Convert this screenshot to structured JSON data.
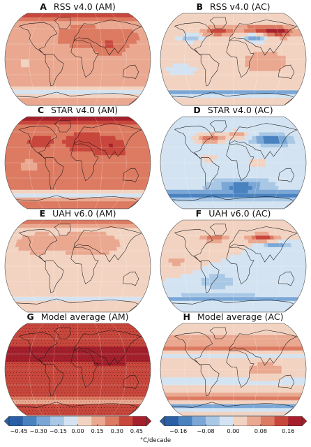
{
  "panels": [
    {
      "letter": "A",
      "title": "RSS v4.0 (AM)",
      "scale": "am",
      "pattern": "warm",
      "hatch": false
    },
    {
      "letter": "B",
      "title": "RSS v4.0 (AC)",
      "scale": "ac",
      "pattern": "ac_strong",
      "hatch": false
    },
    {
      "letter": "C",
      "title": "STAR v4.0 (AM)",
      "scale": "am",
      "pattern": "warm_strong",
      "hatch": false
    },
    {
      "letter": "D",
      "title": "STAR v4.0 (AC)",
      "scale": "ac",
      "pattern": "ac_cool",
      "hatch": false
    },
    {
      "letter": "E",
      "title": "UAH v6.0 (AM)",
      "scale": "am",
      "pattern": "warm_weak",
      "hatch": false
    },
    {
      "letter": "F",
      "title": "UAH v6.0 (AC)",
      "scale": "ac",
      "pattern": "ac_mid",
      "hatch": false
    },
    {
      "letter": "G",
      "title": "Model average (AM)",
      "scale": "am",
      "pattern": "model",
      "hatch": true
    },
    {
      "letter": "H",
      "title": "Model average (AC)",
      "scale": "ac",
      "pattern": "ac_model",
      "hatch": false
    }
  ],
  "chart_data": {
    "type": "heatmap",
    "colorbars": [
      {
        "name": "am",
        "ticks": [
          "-0.45",
          "-0.30",
          "-0.15",
          "0.00",
          "0.15",
          "0.30",
          "0.45"
        ],
        "range": [
          -0.525,
          0.525
        ],
        "colors": [
          "#2a5fa5",
          "#4a82c0",
          "#7aa7d6",
          "#a9c8e6",
          "#d3e3f1",
          "#f2d3c2",
          "#eaa890",
          "#dc7b62",
          "#c8473c",
          "#a5202c"
        ]
      },
      {
        "name": "ac",
        "ticks": [
          "-0.16",
          "-0.08",
          "0.00",
          "0.08",
          "0.16"
        ],
        "range": [
          -0.2,
          0.2
        ],
        "colors": [
          "#2a5fa5",
          "#4a82c0",
          "#7aa7d6",
          "#a9c8e6",
          "#d3e3f1",
          "#f2d3c2",
          "#eaa890",
          "#dc7b62",
          "#c8473c",
          "#a5202c"
        ]
      }
    ],
    "unit_label": "°C/decade"
  }
}
